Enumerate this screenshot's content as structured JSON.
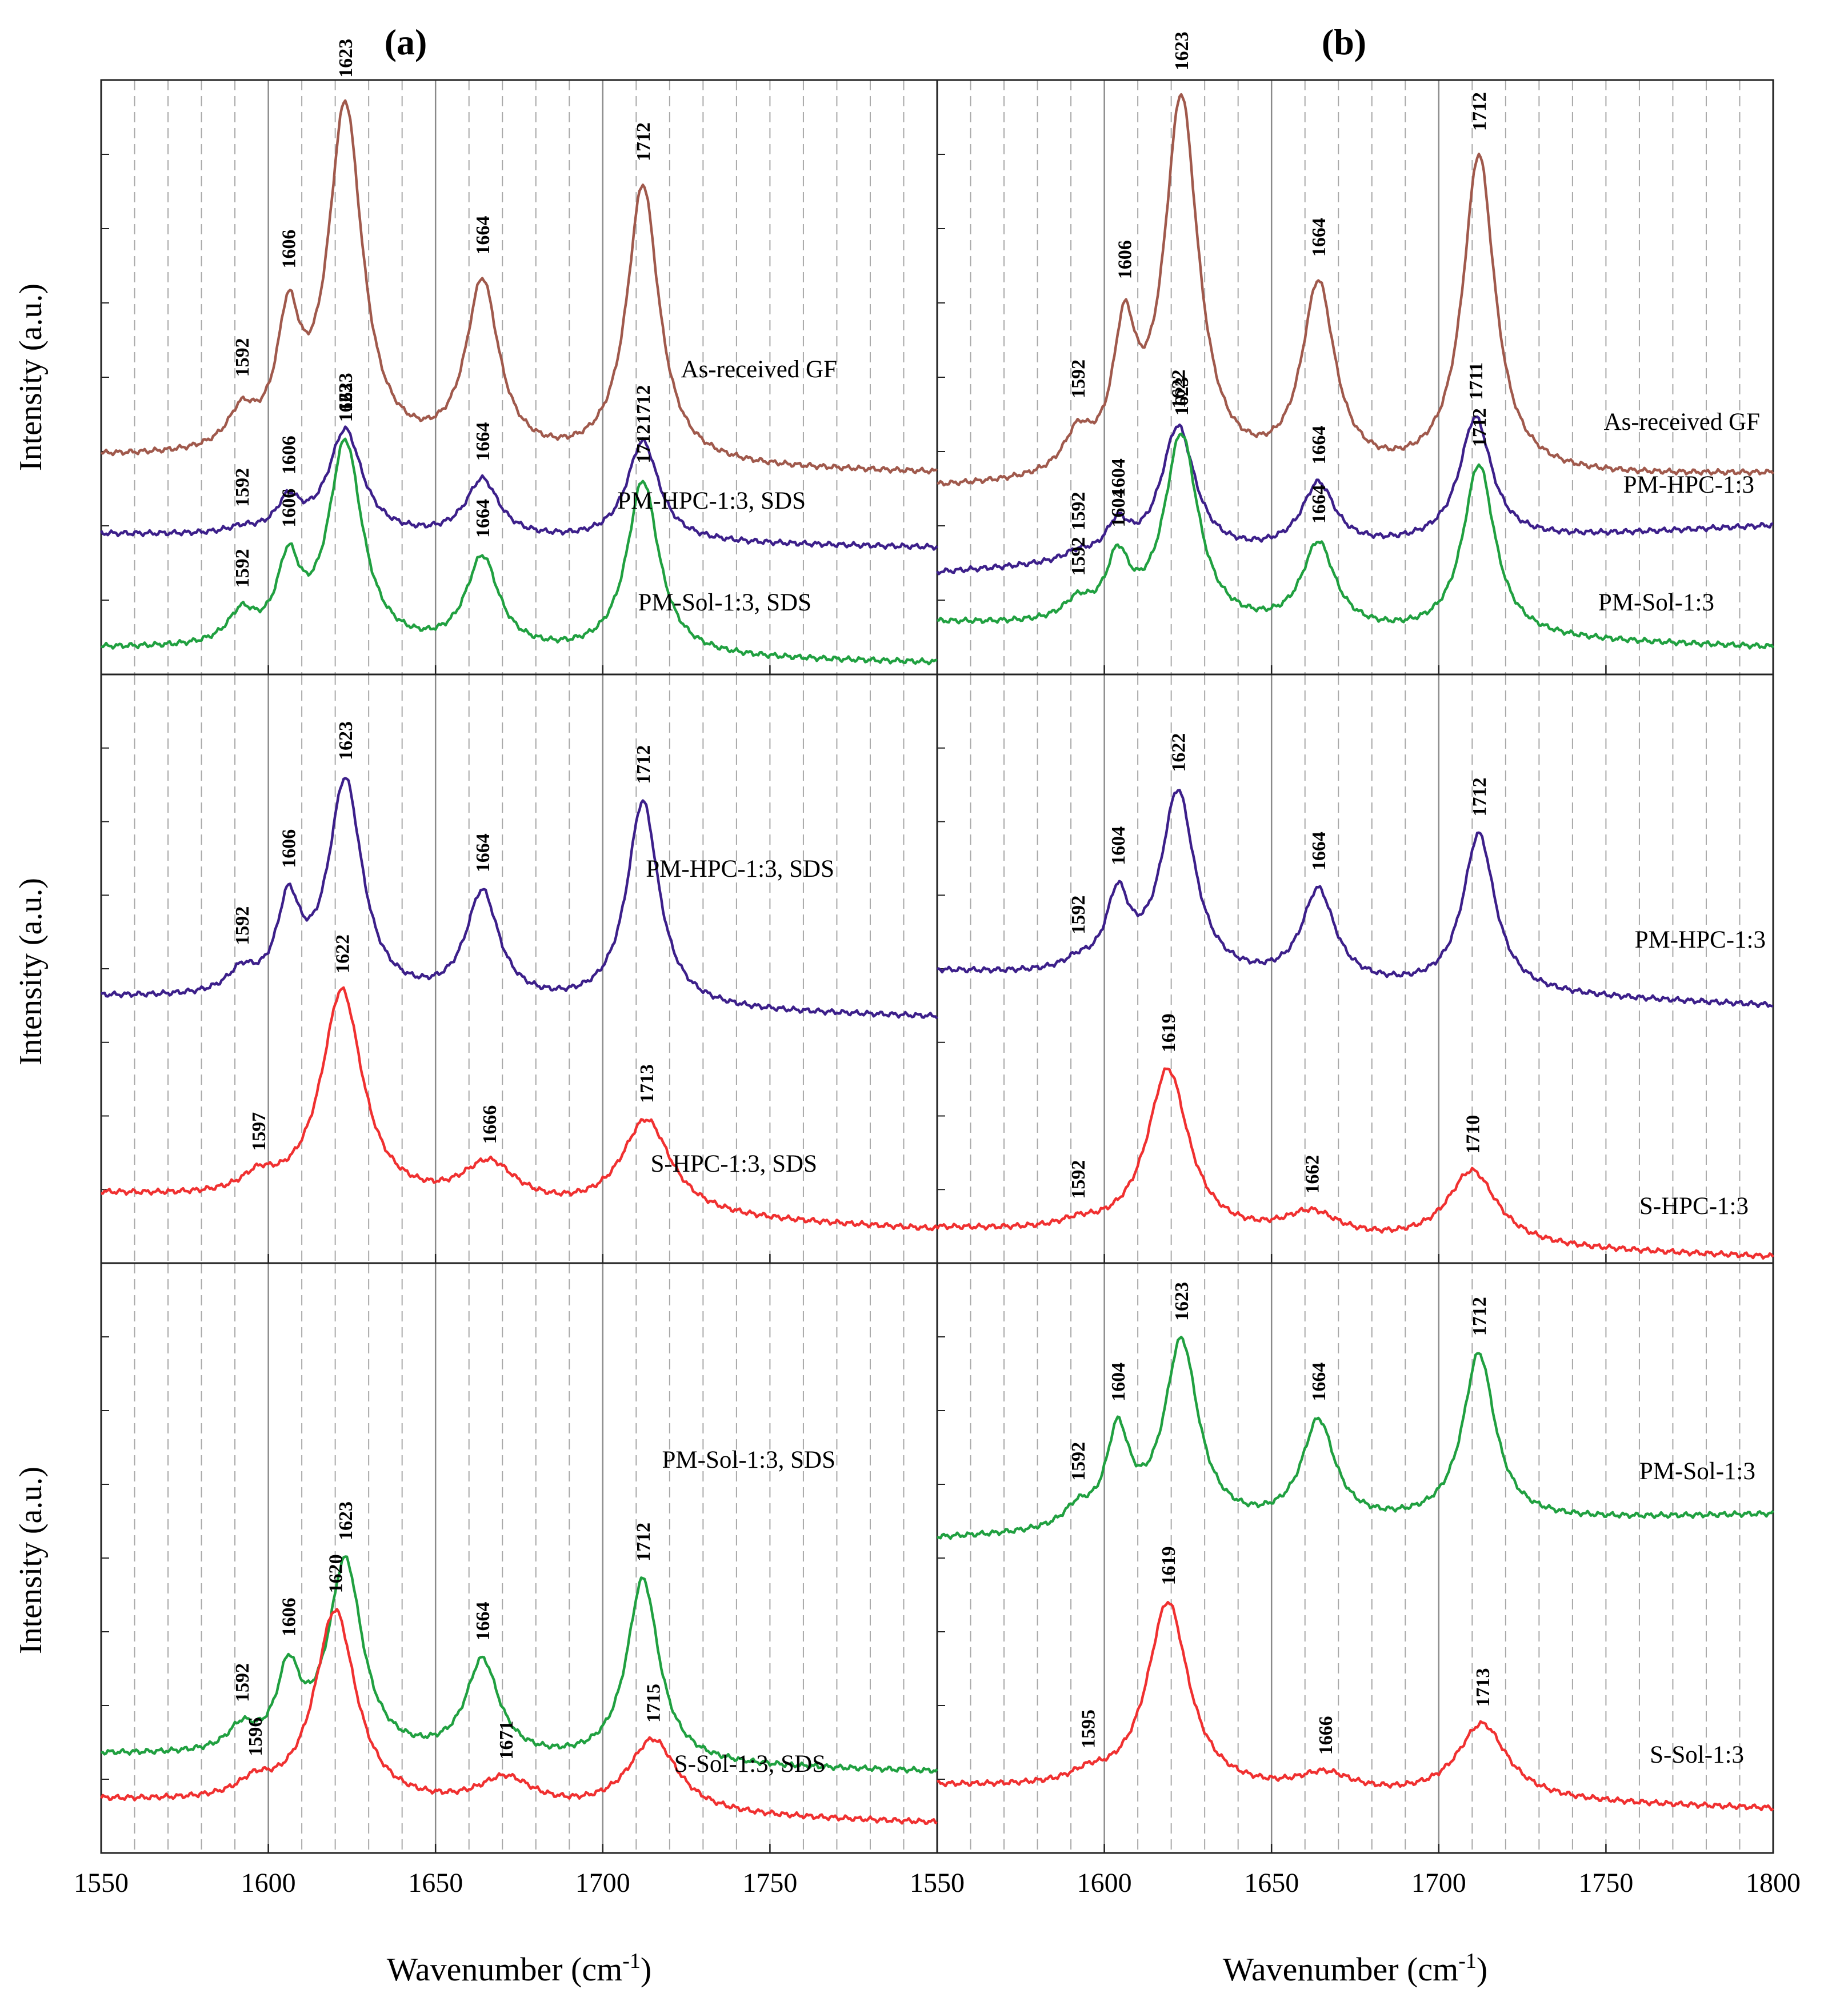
{
  "chart_data": {
    "type": "line",
    "x_unit_label": "Wavenumber (cm",
    "x_unit_sup": "-1",
    "x_unit_close": ")",
    "y_label": "Intensity (a.u.)",
    "xlim": [
      1550,
      1800
    ],
    "x_ticks": [
      1550,
      1600,
      1650,
      1700,
      1750,
      1800
    ],
    "grid": "dashed every 10 cm-1, solid at 1600, 1650, 1700",
    "colors": {
      "As-received GF": "#a0594c",
      "PM-HPC": "#3c1f8a",
      "PM-Sol": "#20a040",
      "S": "#f03030"
    },
    "column_titles": [
      "(a)",
      "(b)"
    ],
    "panels": [
      {
        "column": "(a)",
        "row": 1,
        "series": [
          {
            "name": "As-received GF",
            "color": "#a0594c",
            "peaks": [
              1592,
              1606,
              1623,
              1664,
              1712
            ],
            "peak_heights": [
              0.1,
              0.35,
              1.0,
              0.5,
              0.8
            ]
          },
          {
            "name": "PM-HPC-1:3, SDS",
            "color": "#3c1f8a",
            "peaks": [
              1592,
              1606,
              1623,
              1664,
              1712
            ],
            "peak_heights": [
              0.05,
              0.3,
              1.0,
              0.55,
              0.95
            ]
          },
          {
            "name": "PM-Sol-1:3, SDS",
            "color": "#20a040",
            "peaks": [
              1592,
              1606,
              1623,
              1664,
              1712
            ],
            "peak_heights": [
              0.15,
              0.38,
              1.0,
              0.45,
              0.85
            ]
          }
        ]
      },
      {
        "column": "(b)",
        "row": 1,
        "series": [
          {
            "name": "As-received GF",
            "color": "#a0594c",
            "peaks": [
              1592,
              1606,
              1623,
              1664,
              1712
            ],
            "peak_heights": [
              0.1,
              0.35,
              1.0,
              0.5,
              0.85
            ]
          },
          {
            "name": "PM-HPC-1:3",
            "color": "#3c1f8a",
            "peaks": [
              1592,
              1604,
              1622,
              1664,
              1711
            ],
            "peak_heights": [
              0.06,
              0.25,
              1.0,
              0.5,
              0.95
            ]
          },
          {
            "name": "PM-Sol-1:3",
            "color": "#20a040",
            "peaks": [
              1592,
              1604,
              1623,
              1664,
              1712
            ],
            "peak_heights": [
              0.1,
              0.32,
              1.0,
              0.45,
              0.9
            ]
          }
        ]
      },
      {
        "column": "(a)",
        "row": 2,
        "series": [
          {
            "name": "PM-HPC-1:3, SDS",
            "color": "#3c1f8a",
            "peaks": [
              1592,
              1606,
              1623,
              1664,
              1712
            ],
            "peak_heights": [
              0.1,
              0.4,
              1.0,
              0.5,
              0.95
            ]
          },
          {
            "name": "S-HPC-1:3, SDS",
            "color": "#f03030",
            "peaks": [
              1597,
              1622,
              1666,
              1713
            ],
            "peak_heights": [
              0.08,
              1.0,
              0.2,
              0.45
            ]
          }
        ]
      },
      {
        "column": "(b)",
        "row": 2,
        "series": [
          {
            "name": "PM-HPC-1:3",
            "color": "#3c1f8a",
            "peaks": [
              1592,
              1604,
              1622,
              1664,
              1712
            ],
            "peak_heights": [
              0.05,
              0.4,
              1.0,
              0.5,
              0.85
            ]
          },
          {
            "name": "S-HPC-1:3",
            "color": "#f03030",
            "peaks": [
              1592,
              1619,
              1662,
              1710
            ],
            "peak_heights": [
              0.04,
              1.0,
              0.15,
              0.45
            ]
          }
        ]
      },
      {
        "column": "(a)",
        "row": 3,
        "series": [
          {
            "name": "PM-Sol-1:3, SDS",
            "color": "#20a040",
            "peaks": [
              1592,
              1606,
              1623,
              1664,
              1712
            ],
            "peak_heights": [
              0.12,
              0.4,
              1.0,
              0.5,
              0.95
            ]
          },
          {
            "name": "S-Sol-1:3, SDS",
            "color": "#f03030",
            "peaks": [
              1596,
              1620,
              1671,
              1715
            ],
            "peak_heights": [
              0.08,
              1.0,
              0.15,
              0.38
            ]
          }
        ]
      },
      {
        "column": "(b)",
        "row": 3,
        "series": [
          {
            "name": "PM-Sol-1:3",
            "color": "#20a040",
            "peaks": [
              1592,
              1604,
              1623,
              1664,
              1712
            ],
            "peak_heights": [
              0.1,
              0.5,
              1.0,
              0.55,
              0.9
            ]
          },
          {
            "name": "S-Sol-1:3",
            "color": "#f03030",
            "peaks": [
              1595,
              1619,
              1666,
              1713
            ],
            "peak_heights": [
              0.05,
              1.0,
              0.1,
              0.4
            ]
          }
        ]
      }
    ]
  }
}
